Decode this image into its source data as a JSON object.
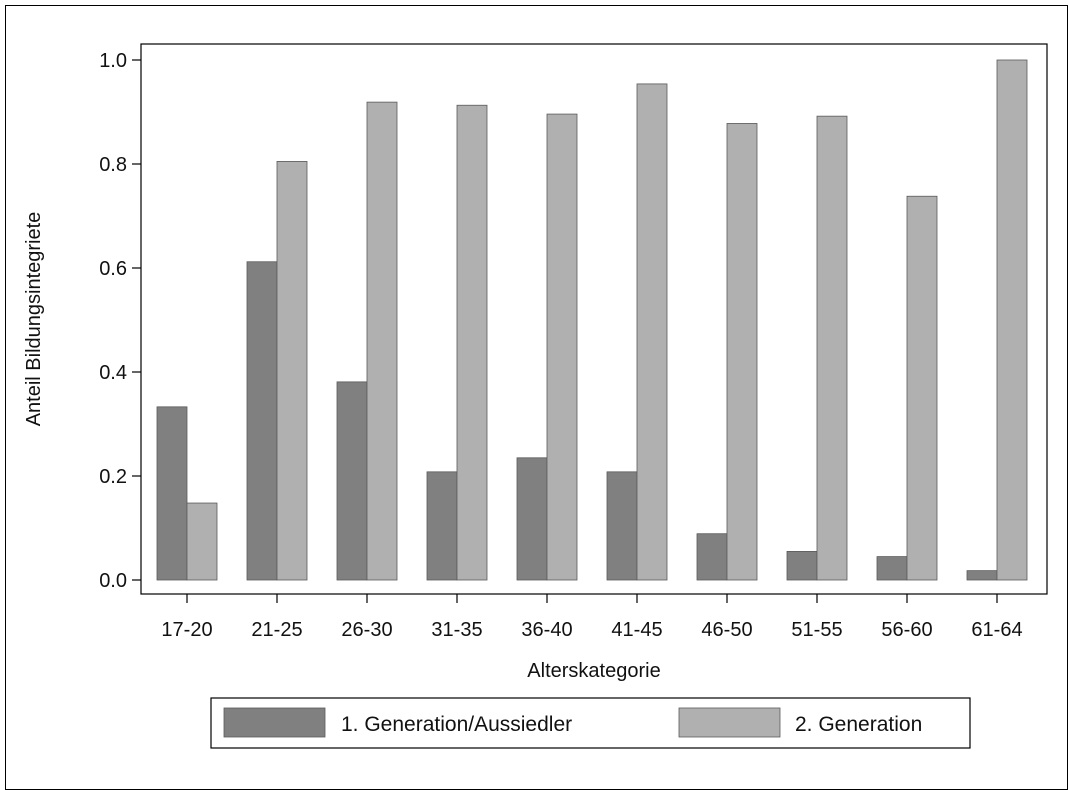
{
  "chart_data": {
    "type": "bar",
    "title": "",
    "xlabel": "Alterskategorie",
    "ylabel": "Anteil Bildungsintegriete",
    "categories": [
      "17-20",
      "21-25",
      "26-30",
      "31-35",
      "36-40",
      "41-45",
      "46-50",
      "51-55",
      "56-60",
      "61-64"
    ],
    "series": [
      {
        "name": "1. Generation/Aussiedler",
        "color": "#808080",
        "values": [
          0.333,
          0.612,
          0.381,
          0.208,
          0.235,
          0.208,
          0.089,
          0.055,
          0.045,
          0.018
        ]
      },
      {
        "name": "2. Generation",
        "color": "#b0b0b0",
        "values": [
          0.148,
          0.805,
          0.919,
          0.913,
          0.896,
          0.954,
          0.878,
          0.892,
          0.738,
          1.0
        ]
      }
    ],
    "ylim": [
      0,
      1.0
    ],
    "yticks": [
      "0.0",
      "0.2",
      "0.4",
      "0.6",
      "0.8",
      "1.0"
    ],
    "ytick_values": [
      0,
      0.2,
      0.4,
      0.6,
      0.8,
      1.0
    ],
    "grid": false,
    "legend_position": "bottom"
  }
}
